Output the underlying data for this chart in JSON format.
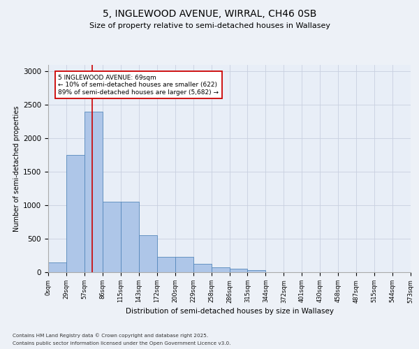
{
  "title1": "5, INGLEWOOD AVENUE, WIRRAL, CH46 0SB",
  "title2": "Size of property relative to semi-detached houses in Wallasey",
  "xlabel": "Distribution of semi-detached houses by size in Wallasey",
  "ylabel": "Number of semi-detached properties",
  "bin_labels": [
    "0sqm",
    "29sqm",
    "57sqm",
    "86sqm",
    "115sqm",
    "143sqm",
    "172sqm",
    "200sqm",
    "229sqm",
    "258sqm",
    "286sqm",
    "315sqm",
    "344sqm",
    "372sqm",
    "401sqm",
    "430sqm",
    "458sqm",
    "487sqm",
    "515sqm",
    "544sqm",
    "573sqm"
  ],
  "bar_values": [
    150,
    1750,
    2400,
    1050,
    1050,
    550,
    225,
    225,
    130,
    75,
    50,
    30,
    5,
    2,
    1,
    1,
    0,
    0,
    0,
    0
  ],
  "bar_color": "#aec6e8",
  "bar_edge_color": "#5588bb",
  "vline_x": 2.41,
  "vline_color": "#cc0000",
  "annotation_title": "5 INGLEWOOD AVENUE: 69sqm",
  "annotation_line1": "← 10% of semi-detached houses are smaller (622)",
  "annotation_line2": "89% of semi-detached houses are larger (5,682) →",
  "annotation_box_color": "#ffffff",
  "annotation_box_edge": "#cc0000",
  "ylim": [
    0,
    3100
  ],
  "yticks": [
    0,
    500,
    1000,
    1500,
    2000,
    2500,
    3000
  ],
  "footnote1": "Contains HM Land Registry data © Crown copyright and database right 2025.",
  "footnote2": "Contains public sector information licensed under the Open Government Licence v3.0.",
  "bg_color": "#e8eef7",
  "fig_bg_color": "#edf1f7"
}
